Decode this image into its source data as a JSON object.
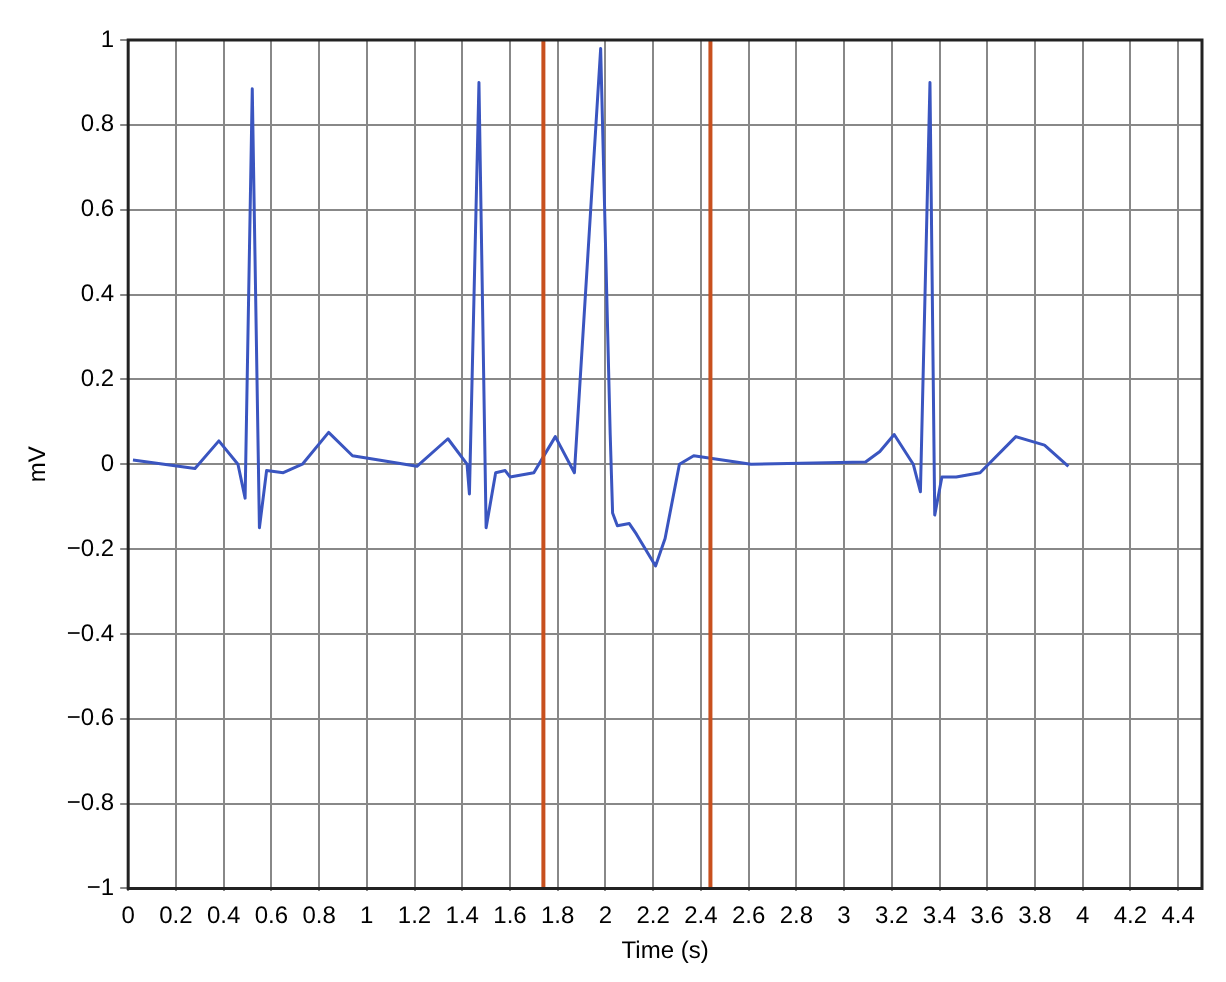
{
  "chart_data": {
    "type": "line",
    "xlabel": "Time (s)",
    "ylabel": "mV",
    "xlim": [
      0,
      4.5
    ],
    "xticks": [
      0,
      0.2,
      0.4,
      0.6,
      0.8,
      1,
      1.2,
      1.4,
      1.6,
      1.8,
      2,
      2.2,
      2.4,
      2.6,
      2.8,
      3,
      3.2,
      3.4,
      3.6,
      3.8,
      4,
      4.2,
      4.4
    ],
    "ylim": [
      -1,
      1
    ],
    "yticks": [
      -1,
      -0.8,
      -0.6,
      -0.4,
      -0.2,
      0,
      0.2,
      0.4,
      0.6,
      0.8,
      1
    ],
    "grid": true,
    "legend": false,
    "marker": "none",
    "line_style": "solid",
    "series": [
      {
        "color": "#3a55c0",
        "x": [
          0.02,
          0.28,
          0.38,
          0.46,
          0.49,
          0.52,
          0.55,
          0.58,
          0.65,
          0.73,
          0.84,
          0.94,
          1.05,
          1.21,
          1.34,
          1.42,
          1.43,
          1.47,
          1.5,
          1.54,
          1.58,
          1.6,
          1.7,
          1.79,
          1.87,
          1.98,
          2.02,
          2.03,
          2.05,
          2.1,
          2.13,
          2.21,
          2.25,
          2.31,
          2.37,
          2.61,
          3.09,
          3.15,
          3.21,
          3.29,
          3.32,
          3.36,
          3.38,
          3.41,
          3.47,
          3.57,
          3.72,
          3.84,
          3.94
        ],
        "values": [
          0.01,
          -0.01,
          0.055,
          0,
          -0.08,
          0.885,
          -0.15,
          -0.015,
          -0.02,
          0,
          0.075,
          0.02,
          0.01,
          -0.005,
          0.06,
          0,
          -0.07,
          0.9,
          -0.15,
          -0.02,
          -0.015,
          -0.03,
          -0.02,
          0.065,
          -0.02,
          0.98,
          0.07,
          -0.115,
          -0.145,
          -0.14,
          -0.165,
          -0.24,
          -0.175,
          0,
          0.02,
          0,
          0.005,
          0.03,
          0.07,
          0,
          -0.065,
          0.9,
          -0.12,
          -0.03,
          -0.03,
          -0.02,
          0.065,
          0.045,
          -0.005
        ]
      }
    ],
    "ref_lines": [
      {
        "axis": "x",
        "value": 1.74,
        "color": "#c8501e"
      },
      {
        "axis": "x",
        "value": 2.44,
        "color": "#c8501e"
      }
    ]
  }
}
